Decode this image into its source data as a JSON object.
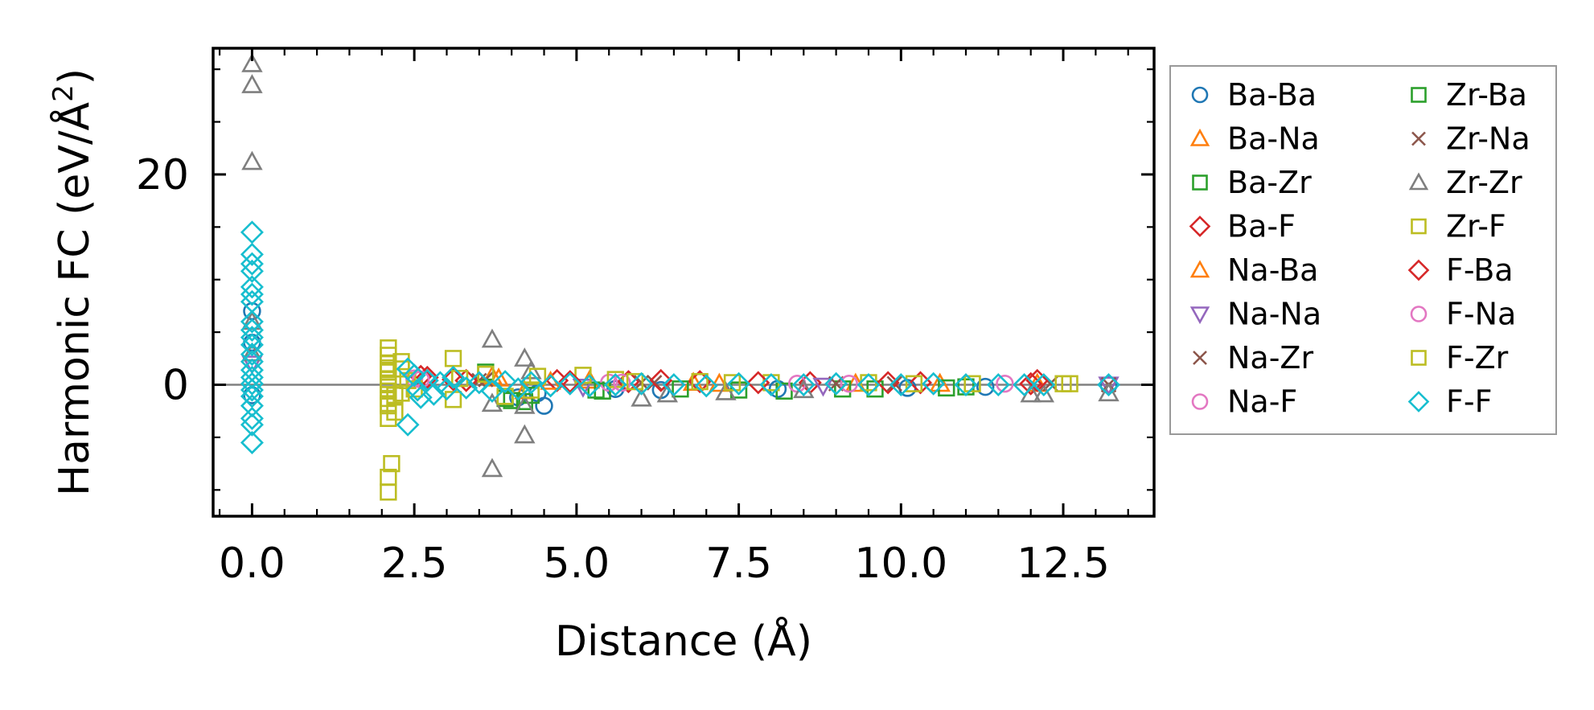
{
  "chart_data": {
    "type": "scatter",
    "xlabel": "Distance (Å)",
    "ylabel": {
      "prefix": "Harmonic FC (eV/Å",
      "sup": "2",
      "suffix": ")"
    },
    "xlim": [
      -0.6,
      13.9
    ],
    "ylim": [
      -12.5,
      32.0
    ],
    "x_ticks": [
      0.0,
      2.5,
      5.0,
      7.5,
      10.0,
      12.5
    ],
    "x_tick_labels": [
      "0.0",
      "2.5",
      "5.0",
      "7.5",
      "10.0",
      "12.5"
    ],
    "y_ticks": [
      0,
      20
    ],
    "y_tick_labels": [
      "0",
      "20"
    ],
    "zero_line": true,
    "legend_position": "outside-right",
    "series": [
      {
        "name": "Ba-Ba",
        "marker": "circle",
        "color": "#1f77b4",
        "points": [
          [
            0,
            7
          ],
          [
            0,
            4
          ],
          [
            0,
            -1
          ],
          [
            4.1,
            -1.2
          ],
          [
            4.5,
            -2.0
          ],
          [
            4.4,
            -0.8
          ],
          [
            5.6,
            -0.4
          ],
          [
            6.3,
            -0.5
          ],
          [
            8.1,
            -0.4
          ],
          [
            10.1,
            -0.3
          ],
          [
            11.3,
            -0.2
          ],
          [
            13.2,
            0
          ]
        ]
      },
      {
        "name": "Ba-Na",
        "marker": "triangle-up",
        "color": "#ff7f0e",
        "points": [
          [
            3.7,
            0.8
          ],
          [
            4.2,
            -0.6
          ],
          [
            5.2,
            0.4
          ],
          [
            6.8,
            0.2
          ],
          [
            9.3,
            0.1
          ],
          [
            12.1,
            0.1
          ]
        ]
      },
      {
        "name": "Ba-Zr",
        "marker": "square",
        "color": "#2ca02c",
        "points": [
          [
            3.6,
            1.2
          ],
          [
            4.0,
            -1.5
          ],
          [
            4.3,
            -1.0
          ],
          [
            5.3,
            -0.5
          ],
          [
            6.6,
            -0.4
          ],
          [
            8.2,
            -0.6
          ],
          [
            9.6,
            -0.4
          ],
          [
            11.0,
            -0.2
          ]
        ]
      },
      {
        "name": "Ba-F",
        "marker": "diamond",
        "color": "#d62728",
        "points": [
          [
            2.6,
            0.8
          ],
          [
            3.1,
            0.5
          ],
          [
            4.7,
            0.4
          ],
          [
            5.8,
            0.3
          ],
          [
            6.9,
            0.3
          ],
          [
            8.6,
            0.2
          ],
          [
            10.3,
            0.2
          ],
          [
            12.0,
            0.1
          ]
        ]
      },
      {
        "name": "Na-Ba",
        "marker": "triangle-up",
        "color": "#ff7f0e",
        "points": [
          [
            3.8,
            0.6
          ],
          [
            4.6,
            0.3
          ],
          [
            7.2,
            0.1
          ],
          [
            10.6,
            0.1
          ]
        ]
      },
      {
        "name": "Na-Na",
        "marker": "triangle-down",
        "color": "#9467bd",
        "points": [
          [
            0,
            2
          ],
          [
            5.1,
            -0.2
          ],
          [
            8.8,
            -0.1
          ],
          [
            13.2,
            0
          ]
        ]
      },
      {
        "name": "Na-Zr",
        "marker": "x",
        "color": "#8c564b",
        "points": [
          [
            3.5,
            0.4
          ],
          [
            6.2,
            0.2
          ],
          [
            9.9,
            0.1
          ],
          [
            13.2,
            0
          ]
        ]
      },
      {
        "name": "Na-F",
        "marker": "circle",
        "color": "#e377c2",
        "points": [
          [
            2.5,
            0.6
          ],
          [
            5.5,
            0.2
          ],
          [
            8.4,
            0.1
          ],
          [
            11.6,
            0.1
          ]
        ]
      },
      {
        "name": "Zr-Ba",
        "marker": "square",
        "color": "#2ca02c",
        "points": [
          [
            3.9,
            -1.3
          ],
          [
            4.2,
            -1.6
          ],
          [
            5.4,
            -0.6
          ],
          [
            7.5,
            -0.5
          ],
          [
            9.1,
            -0.4
          ],
          [
            10.7,
            -0.3
          ]
        ]
      },
      {
        "name": "Zr-Na",
        "marker": "x",
        "color": "#8c564b",
        "points": [
          [
            3.6,
            0.5
          ],
          [
            6.0,
            0.2
          ],
          [
            9.0,
            0.1
          ],
          [
            12.3,
            0.1
          ]
        ]
      },
      {
        "name": "Zr-Zr",
        "marker": "triangle-up",
        "color": "#7f7f7f",
        "points": [
          [
            0,
            30.5
          ],
          [
            0,
            28.5
          ],
          [
            0,
            21.2
          ],
          [
            0,
            6
          ],
          [
            0,
            3
          ],
          [
            3.7,
            4.3
          ],
          [
            3.7,
            -1.8
          ],
          [
            3.7,
            -8.0
          ],
          [
            4.2,
            2.5
          ],
          [
            4.2,
            -2.0
          ],
          [
            4.2,
            -4.8
          ],
          [
            4.3,
            1.3
          ],
          [
            6.0,
            -1.3
          ],
          [
            6.4,
            -0.9
          ],
          [
            7.3,
            -0.7
          ],
          [
            8.5,
            -0.5
          ],
          [
            12.0,
            -0.9
          ],
          [
            12.2,
            -0.9
          ],
          [
            13.2,
            -0.8
          ]
        ]
      },
      {
        "name": "Zr-F",
        "marker": "square",
        "color": "#bcbd22",
        "points": [
          [
            2.1,
            3.5
          ],
          [
            2.1,
            2.8
          ],
          [
            2.1,
            2.0
          ],
          [
            2.1,
            1.2
          ],
          [
            2.1,
            0.5
          ],
          [
            2.1,
            0
          ],
          [
            2.1,
            -0.6
          ],
          [
            2.1,
            -1.3
          ],
          [
            2.1,
            -2.0
          ],
          [
            2.1,
            -3.2
          ],
          [
            2.15,
            -7.5
          ],
          [
            2.1,
            -8.8
          ],
          [
            2.1,
            -10.2
          ],
          [
            2.2,
            -1.0
          ],
          [
            2.3,
            1.5
          ],
          [
            2.3,
            -0.8
          ],
          [
            2.4,
            0.4
          ],
          [
            3.1,
            2.5
          ],
          [
            3.1,
            -1.4
          ],
          [
            3.6,
            1.0
          ],
          [
            3.9,
            -1.1
          ],
          [
            4.4,
            0.8
          ],
          [
            5.1,
            0.9
          ],
          [
            5.6,
            0.5
          ],
          [
            6.9,
            0.3
          ],
          [
            8.0,
            0.2
          ],
          [
            9.5,
            0.2
          ],
          [
            11.1,
            0.1
          ],
          [
            12.6,
            0.1
          ]
        ]
      },
      {
        "name": "F-Ba",
        "marker": "diamond",
        "color": "#d62728",
        "points": [
          [
            2.7,
            0.7
          ],
          [
            3.3,
            0.4
          ],
          [
            4.9,
            0.3
          ],
          [
            6.3,
            0.4
          ],
          [
            7.8,
            0.2
          ],
          [
            9.8,
            0.2
          ],
          [
            12.1,
            0.4
          ]
        ]
      },
      {
        "name": "F-Na",
        "marker": "circle",
        "color": "#e377c2",
        "points": [
          [
            2.6,
            0.5
          ],
          [
            5.7,
            0.2
          ],
          [
            9.2,
            0.1
          ]
        ]
      },
      {
        "name": "F-Zr",
        "marker": "square",
        "color": "#bcbd22",
        "points": [
          [
            2.1,
            -1.8
          ],
          [
            2.1,
            1.6
          ],
          [
            2.2,
            -2.6
          ],
          [
            2.3,
            2.2
          ],
          [
            2.5,
            -0.4
          ],
          [
            3.2,
            0.6
          ],
          [
            4.3,
            -0.5
          ],
          [
            5.9,
            0.3
          ],
          [
            7.4,
            0.2
          ],
          [
            10.2,
            0.1
          ],
          [
            12.5,
            0.1
          ]
        ]
      },
      {
        "name": "F-F",
        "marker": "diamond",
        "color": "#17becf",
        "points": [
          [
            0,
            14.5
          ],
          [
            0,
            12.4
          ],
          [
            0,
            11.5
          ],
          [
            0,
            10.8
          ],
          [
            0,
            9.3
          ],
          [
            0,
            8.6
          ],
          [
            0,
            7.9
          ],
          [
            0,
            6.0
          ],
          [
            0,
            5.2
          ],
          [
            0,
            4.5
          ],
          [
            0,
            3.8
          ],
          [
            0,
            2.9
          ],
          [
            0,
            2.2
          ],
          [
            0,
            1.4
          ],
          [
            0,
            0.7
          ],
          [
            0,
            0.1
          ],
          [
            0,
            -0.5
          ],
          [
            0,
            -1.1
          ],
          [
            0,
            -2.0
          ],
          [
            0,
            -3.2
          ],
          [
            0,
            -3.8
          ],
          [
            0,
            -5.5
          ],
          [
            2.4,
            -3.8
          ],
          [
            2.4,
            1.5
          ],
          [
            2.5,
            0.9
          ],
          [
            2.55,
            -0.5
          ],
          [
            2.6,
            -1.2
          ],
          [
            2.7,
            0.4
          ],
          [
            2.8,
            -0.9
          ],
          [
            2.9,
            0.2
          ],
          [
            3.0,
            -0.4
          ],
          [
            3.1,
            0.7
          ],
          [
            3.3,
            -0.3
          ],
          [
            3.5,
            0.2
          ],
          [
            3.7,
            -0.6
          ],
          [
            3.9,
            0.3
          ],
          [
            4.1,
            -0.4
          ],
          [
            4.3,
            0.2
          ],
          [
            4.6,
            -0.1
          ],
          [
            4.9,
            0.1
          ],
          [
            5.2,
            -0.1
          ],
          [
            5.6,
            0
          ],
          [
            6.0,
            0.1
          ],
          [
            6.5,
            0
          ],
          [
            7.0,
            -0.1
          ],
          [
            7.5,
            0.1
          ],
          [
            8.0,
            0
          ],
          [
            8.5,
            0
          ],
          [
            9.0,
            0.1
          ],
          [
            9.5,
            0
          ],
          [
            10.0,
            0
          ],
          [
            10.5,
            0.1
          ],
          [
            11.0,
            0
          ],
          [
            11.5,
            0
          ],
          [
            11.9,
            0
          ],
          [
            12.2,
            0
          ],
          [
            13.2,
            0
          ]
        ]
      }
    ]
  }
}
